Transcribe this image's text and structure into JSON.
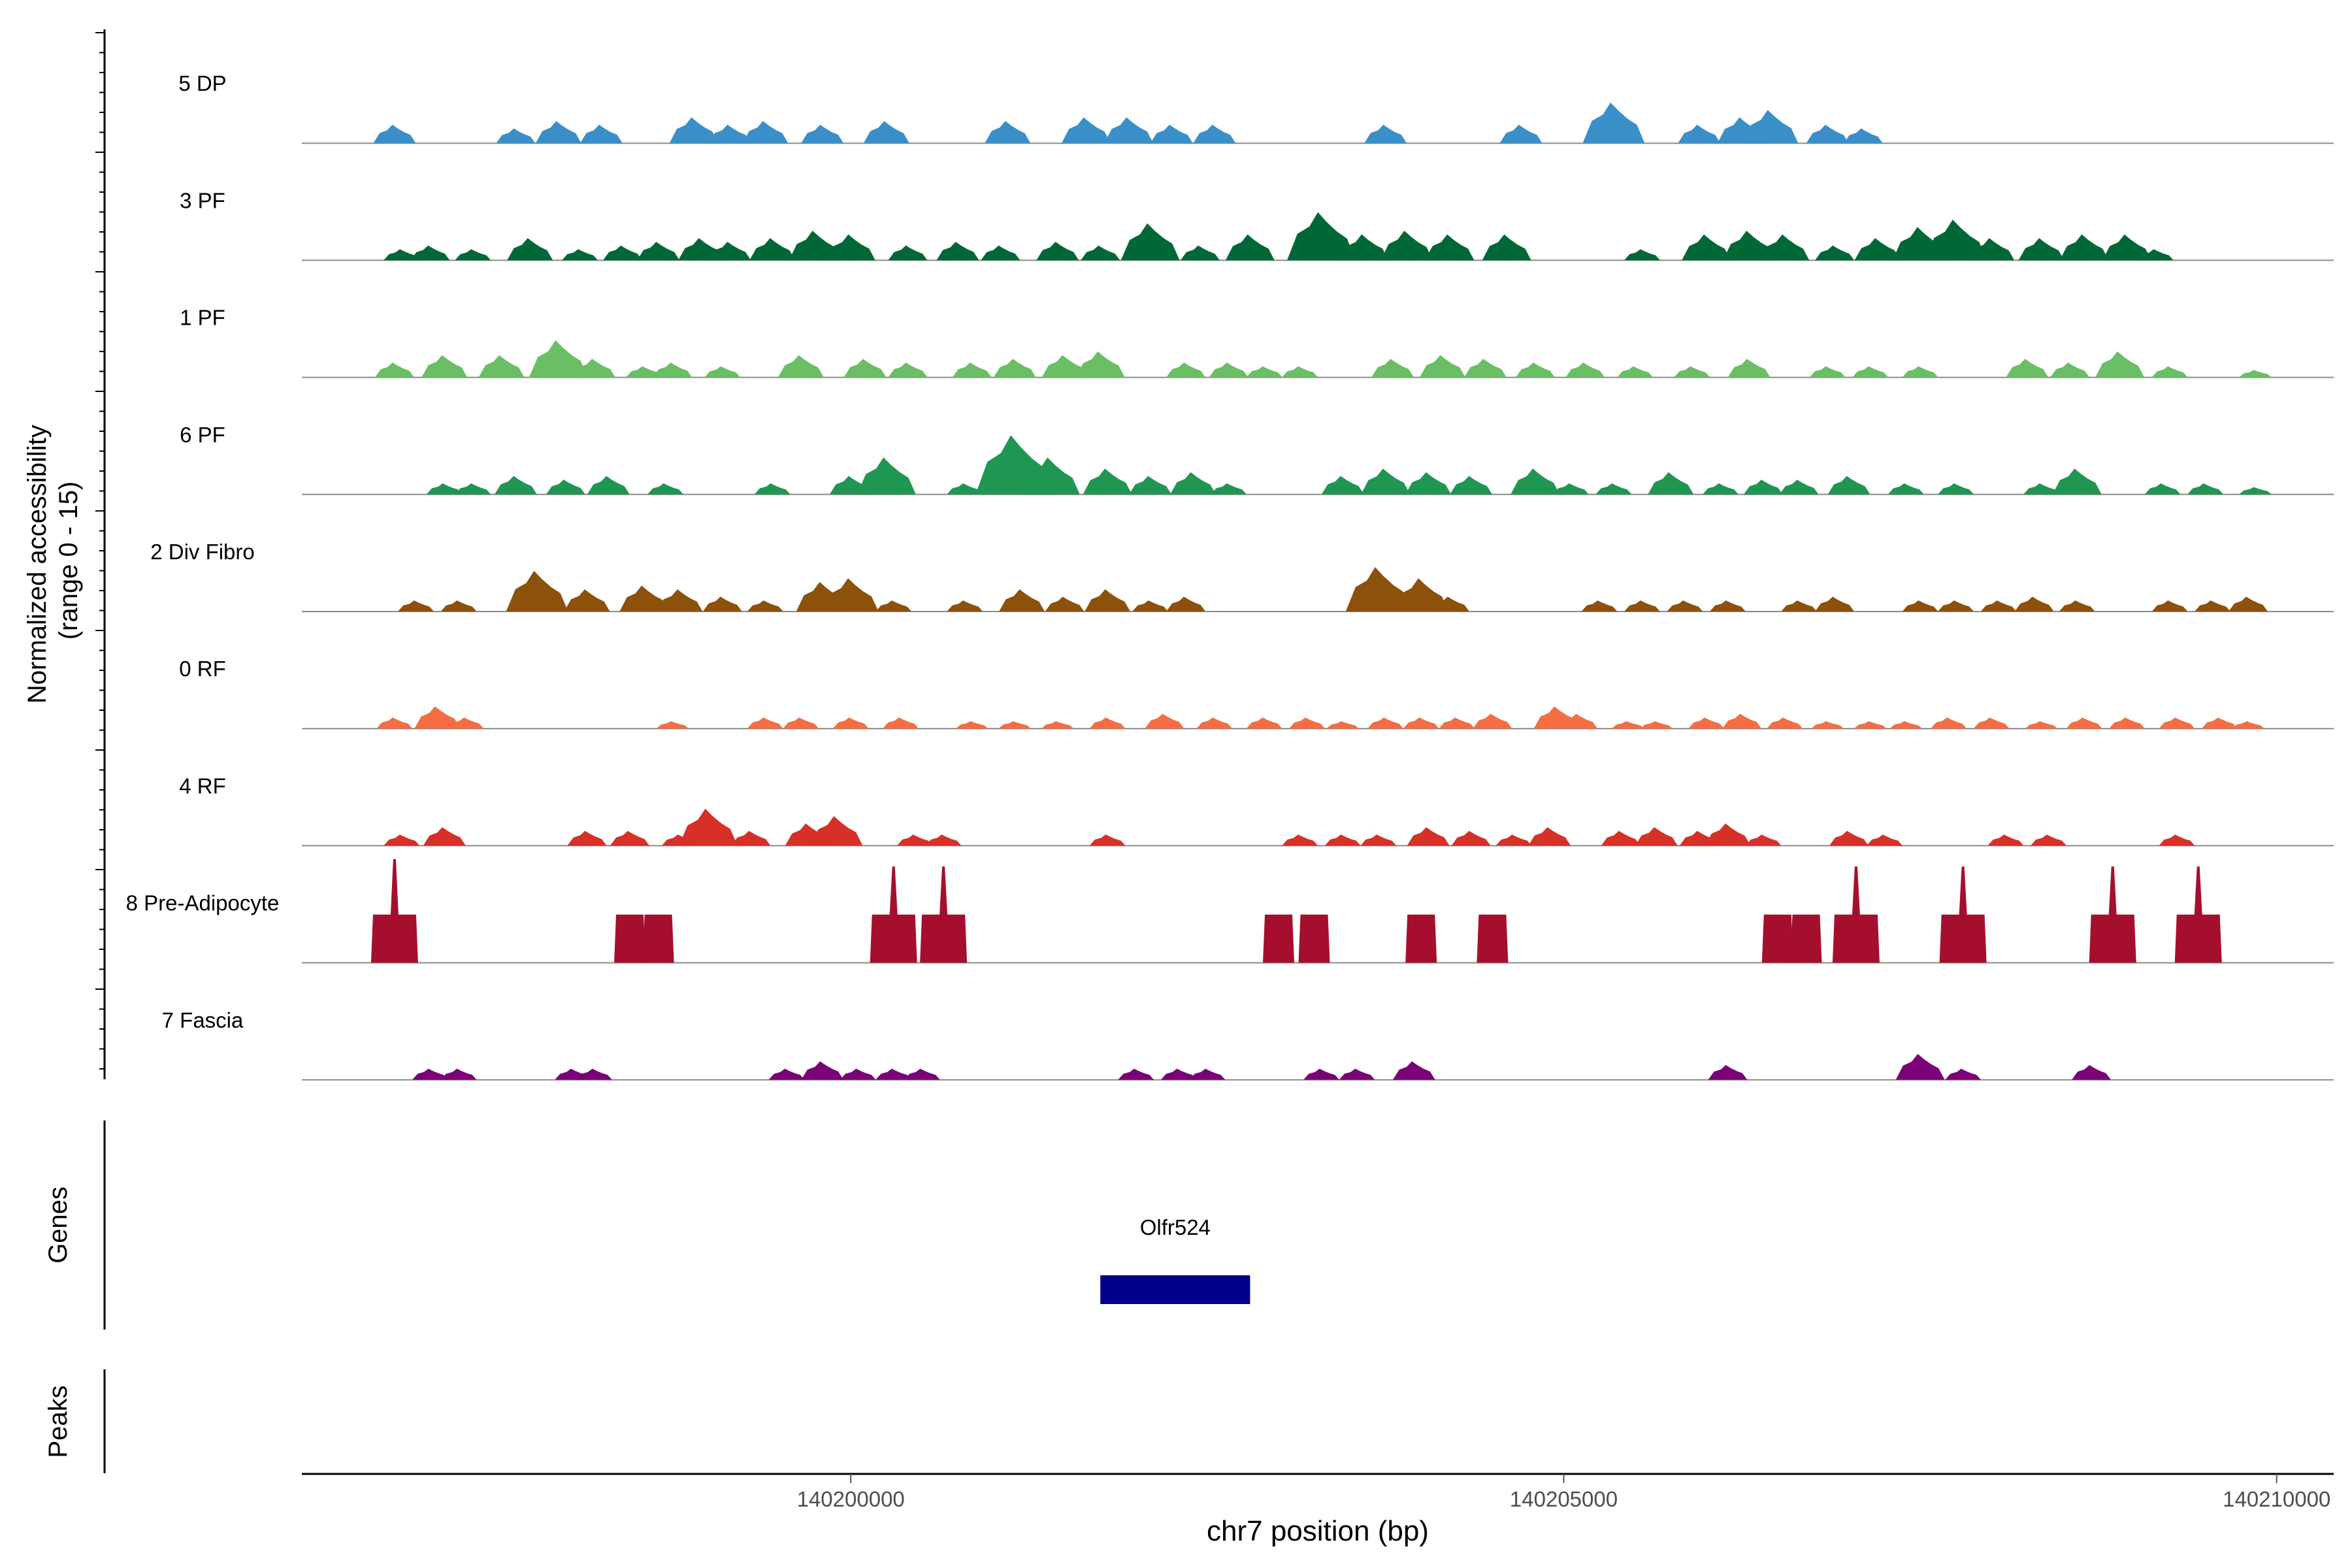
{
  "chart_data": {
    "type": "area",
    "title": "",
    "ylabel_line1": "Normalized accessibility",
    "ylabel_line2": "(range 0 - 15)",
    "xlabel": "chr7 position (bp)",
    "genes_label": "Genes",
    "peaks_label": "Peaks",
    "x_range": [
      140196150,
      140210400
    ],
    "y_range": [
      0,
      15
    ],
    "x_ticks": [
      {
        "value": 140200000,
        "label": "140200000"
      },
      {
        "value": 140205000,
        "label": "140205000"
      },
      {
        "value": 140210000,
        "label": "140210000"
      }
    ],
    "genes": [
      {
        "name": "Olfr524",
        "start": 140201750,
        "end": 140202800,
        "color": "#00008B"
      }
    ],
    "series": [
      {
        "name": "5 DP",
        "color": "#3A8FC9",
        "peaks": [
          [
            140196800,
            2.5
          ],
          [
            140197650,
            2.0
          ],
          [
            140197950,
            3.0
          ],
          [
            140198250,
            2.5
          ],
          [
            140198900,
            3.5
          ],
          [
            140199150,
            2.5
          ],
          [
            140199400,
            3.0
          ],
          [
            140199800,
            2.5
          ],
          [
            140200250,
            3.0
          ],
          [
            140201100,
            3.0
          ],
          [
            140201650,
            3.5
          ],
          [
            140201950,
            3.5
          ],
          [
            140202250,
            2.5
          ],
          [
            140202550,
            2.5
          ],
          [
            140203750,
            2.5
          ],
          [
            140204700,
            2.5
          ],
          [
            140205350,
            5.5
          ],
          [
            140205950,
            2.5
          ],
          [
            140206250,
            3.5
          ],
          [
            140206450,
            4.5
          ],
          [
            140206850,
            2.5
          ],
          [
            140207100,
            2.0
          ]
        ]
      },
      {
        "name": "3 PF",
        "color": "#006837",
        "peaks": [
          [
            140196850,
            1.5
          ],
          [
            140197050,
            2.0
          ],
          [
            140197350,
            1.5
          ],
          [
            140197750,
            3.0
          ],
          [
            140198100,
            1.5
          ],
          [
            140198400,
            2.0
          ],
          [
            140198650,
            2.5
          ],
          [
            140198950,
            3.0
          ],
          [
            140199150,
            2.5
          ],
          [
            140199450,
            3.0
          ],
          [
            140199750,
            4.0
          ],
          [
            140200000,
            3.5
          ],
          [
            140200400,
            2.0
          ],
          [
            140200750,
            2.5
          ],
          [
            140201050,
            2.0
          ],
          [
            140201450,
            2.5
          ],
          [
            140201750,
            2.0
          ],
          [
            140202100,
            5.0
          ],
          [
            140202450,
            2.0
          ],
          [
            140202800,
            3.5
          ],
          [
            140203300,
            6.5
          ],
          [
            140203600,
            3.5
          ],
          [
            140203900,
            4.0
          ],
          [
            140204200,
            3.5
          ],
          [
            140204600,
            3.5
          ],
          [
            140205550,
            1.5
          ],
          [
            140206000,
            3.5
          ],
          [
            140206300,
            4.0
          ],
          [
            140206550,
            3.5
          ],
          [
            140206900,
            2.0
          ],
          [
            140207200,
            3.0
          ],
          [
            140207500,
            4.5
          ],
          [
            140207750,
            5.5
          ],
          [
            140208000,
            3.0
          ],
          [
            140208350,
            3.0
          ],
          [
            140208650,
            3.5
          ],
          [
            140208950,
            3.5
          ],
          [
            140209150,
            1.5
          ]
        ]
      },
      {
        "name": "1 PF",
        "color": "#6ABE64",
        "peaks": [
          [
            140196800,
            2.0
          ],
          [
            140197150,
            3.0
          ],
          [
            140197550,
            3.0
          ],
          [
            140197950,
            5.0
          ],
          [
            140198200,
            2.5
          ],
          [
            140198550,
            1.5
          ],
          [
            140198750,
            2.0
          ],
          [
            140199100,
            1.5
          ],
          [
            140199650,
            3.0
          ],
          [
            140200100,
            2.5
          ],
          [
            140200400,
            2.0
          ],
          [
            140200850,
            2.0
          ],
          [
            140201150,
            2.5
          ],
          [
            140201500,
            3.0
          ],
          [
            140201750,
            3.5
          ],
          [
            140202350,
            2.0
          ],
          [
            140202650,
            2.0
          ],
          [
            140202900,
            1.5
          ],
          [
            140203150,
            1.5
          ],
          [
            140203800,
            2.5
          ],
          [
            140204150,
            3.0
          ],
          [
            140204450,
            2.5
          ],
          [
            140204800,
            2.0
          ],
          [
            140205150,
            2.0
          ],
          [
            140205500,
            1.5
          ],
          [
            140205900,
            1.5
          ],
          [
            140206300,
            2.5
          ],
          [
            140206850,
            1.5
          ],
          [
            140207150,
            1.5
          ],
          [
            140207500,
            1.5
          ],
          [
            140208250,
            2.5
          ],
          [
            140208550,
            2.0
          ],
          [
            140208900,
            3.5
          ],
          [
            140209250,
            1.5
          ],
          [
            140209850,
            1.0
          ]
        ]
      },
      {
        "name": "6 PF",
        "color": "#1F9652",
        "peaks": [
          [
            140197150,
            1.5
          ],
          [
            140197350,
            1.5
          ],
          [
            140197650,
            2.5
          ],
          [
            140198000,
            2.0
          ],
          [
            140198300,
            2.5
          ],
          [
            140198700,
            1.5
          ],
          [
            140199450,
            1.5
          ],
          [
            140200000,
            2.5
          ],
          [
            140200250,
            5.0
          ],
          [
            140200800,
            1.5
          ],
          [
            140201150,
            8.0
          ],
          [
            140201400,
            5.0
          ],
          [
            140201800,
            3.5
          ],
          [
            140202100,
            2.5
          ],
          [
            140202400,
            3.0
          ],
          [
            140202650,
            1.5
          ],
          [
            140203450,
            2.5
          ],
          [
            140203750,
            3.5
          ],
          [
            140204050,
            3.0
          ],
          [
            140204350,
            2.5
          ],
          [
            140204800,
            3.5
          ],
          [
            140205050,
            1.5
          ],
          [
            140205350,
            1.5
          ],
          [
            140205750,
            3.0
          ],
          [
            140206100,
            1.5
          ],
          [
            140206400,
            2.0
          ],
          [
            140206650,
            2.0
          ],
          [
            140207000,
            2.5
          ],
          [
            140207400,
            1.5
          ],
          [
            140207750,
            1.5
          ],
          [
            140208350,
            1.5
          ],
          [
            140208600,
            3.5
          ],
          [
            140209200,
            1.5
          ],
          [
            140209500,
            1.5
          ],
          [
            140209850,
            1.0
          ]
        ]
      },
      {
        "name": "2 Div Fibro",
        "color": "#8C510A",
        "peaks": [
          [
            140196950,
            1.5
          ],
          [
            140197250,
            1.5
          ],
          [
            140197800,
            5.5
          ],
          [
            140198150,
            3.0
          ],
          [
            140198550,
            3.5
          ],
          [
            140198800,
            3.0
          ],
          [
            140199100,
            2.0
          ],
          [
            140199400,
            1.5
          ],
          [
            140199800,
            4.0
          ],
          [
            140200000,
            4.5
          ],
          [
            140200300,
            1.5
          ],
          [
            140200800,
            1.5
          ],
          [
            140201200,
            3.0
          ],
          [
            140201500,
            2.0
          ],
          [
            140201800,
            3.0
          ],
          [
            140202100,
            1.5
          ],
          [
            140202350,
            2.0
          ],
          [
            140203700,
            6.0
          ],
          [
            140204000,
            4.5
          ],
          [
            140204200,
            2.0
          ],
          [
            140205250,
            1.5
          ],
          [
            140205550,
            1.5
          ],
          [
            140205850,
            1.5
          ],
          [
            140206150,
            1.5
          ],
          [
            140206650,
            1.5
          ],
          [
            140206900,
            2.0
          ],
          [
            140207500,
            1.5
          ],
          [
            140207750,
            1.5
          ],
          [
            140208050,
            1.5
          ],
          [
            140208300,
            2.0
          ],
          [
            140208600,
            1.5
          ],
          [
            140209250,
            1.5
          ],
          [
            140209550,
            1.5
          ],
          [
            140209800,
            2.0
          ]
        ]
      },
      {
        "name": "0 RF",
        "color": "#F46D43",
        "peaks": [
          [
            140196800,
            1.5
          ],
          [
            140197100,
            3.0
          ],
          [
            140197300,
            1.5
          ],
          [
            140198750,
            1.0
          ],
          [
            140199400,
            1.5
          ],
          [
            140199650,
            1.5
          ],
          [
            140200000,
            1.5
          ],
          [
            140200350,
            1.5
          ],
          [
            140200850,
            1.0
          ],
          [
            140201150,
            1.0
          ],
          [
            140201450,
            1.0
          ],
          [
            140201800,
            1.5
          ],
          [
            140202200,
            2.0
          ],
          [
            140202550,
            1.5
          ],
          [
            140202900,
            1.5
          ],
          [
            140203200,
            1.5
          ],
          [
            140203450,
            1.0
          ],
          [
            140203750,
            1.5
          ],
          [
            140204000,
            1.5
          ],
          [
            140204250,
            1.5
          ],
          [
            140204500,
            2.0
          ],
          [
            140204950,
            3.0
          ],
          [
            140205100,
            2.0
          ],
          [
            140205450,
            1.0
          ],
          [
            140205650,
            1.0
          ],
          [
            140206000,
            1.5
          ],
          [
            140206250,
            2.0
          ],
          [
            140206550,
            1.5
          ],
          [
            140206850,
            1.0
          ],
          [
            140207150,
            1.0
          ],
          [
            140207400,
            1.0
          ],
          [
            140207700,
            1.5
          ],
          [
            140208000,
            1.5
          ],
          [
            140208350,
            1.0
          ],
          [
            140208650,
            1.5
          ],
          [
            140208950,
            1.5
          ],
          [
            140209300,
            1.5
          ],
          [
            140209600,
            1.5
          ],
          [
            140209800,
            1.0
          ]
        ]
      },
      {
        "name": "4 RF",
        "color": "#D73027",
        "peaks": [
          [
            140196850,
            1.5
          ],
          [
            140197150,
            2.5
          ],
          [
            140198150,
            2.0
          ],
          [
            140198450,
            2.0
          ],
          [
            140198800,
            1.5
          ],
          [
            140199000,
            5.0
          ],
          [
            140199300,
            2.0
          ],
          [
            140199700,
            3.0
          ],
          [
            140199900,
            4.0
          ],
          [
            140200450,
            1.5
          ],
          [
            140200650,
            1.5
          ],
          [
            140201800,
            1.5
          ],
          [
            140203150,
            1.5
          ],
          [
            140203450,
            1.5
          ],
          [
            140203700,
            1.5
          ],
          [
            140204050,
            2.5
          ],
          [
            140204350,
            2.0
          ],
          [
            140204650,
            1.5
          ],
          [
            140204900,
            2.5
          ],
          [
            140205400,
            2.0
          ],
          [
            140205650,
            2.5
          ],
          [
            140205950,
            2.0
          ],
          [
            140206150,
            3.0
          ],
          [
            140206400,
            1.5
          ],
          [
            140207000,
            2.0
          ],
          [
            140207250,
            1.5
          ],
          [
            140208100,
            1.5
          ],
          [
            140208400,
            1.5
          ],
          [
            140209300,
            1.5
          ]
        ]
      },
      {
        "name": "8 Pre-Adipocyte",
        "color": "#A50F2D",
        "peaks": [
          [
            140196800,
            14.0
          ],
          [
            140198450,
            6.5
          ],
          [
            140198650,
            6.5
          ],
          [
            140200300,
            13.0
          ],
          [
            140200650,
            13.0
          ],
          [
            140203000,
            6.5
          ],
          [
            140203250,
            6.5
          ],
          [
            140204000,
            6.5
          ],
          [
            140204500,
            6.5
          ],
          [
            140206500,
            6.5
          ],
          [
            140206700,
            6.5
          ],
          [
            140207050,
            13.0
          ],
          [
            140207800,
            13.0
          ],
          [
            140208850,
            13.0
          ],
          [
            140209450,
            13.0
          ]
        ]
      },
      {
        "name": "7 Fascia",
        "color": "#7A0177",
        "peaks": [
          [
            140197050,
            1.5
          ],
          [
            140197250,
            1.5
          ],
          [
            140198050,
            1.5
          ],
          [
            140198200,
            1.5
          ],
          [
            140199550,
            1.5
          ],
          [
            140199800,
            2.5
          ],
          [
            140200050,
            1.5
          ],
          [
            140200300,
            1.5
          ],
          [
            140200500,
            1.5
          ],
          [
            140202000,
            1.5
          ],
          [
            140202300,
            1.5
          ],
          [
            140202500,
            1.5
          ],
          [
            140203300,
            1.5
          ],
          [
            140203550,
            1.5
          ],
          [
            140203950,
            2.5
          ],
          [
            140206150,
            2.0
          ],
          [
            140207500,
            3.5
          ],
          [
            140207800,
            1.5
          ],
          [
            140208700,
            2.0
          ]
        ]
      }
    ]
  }
}
